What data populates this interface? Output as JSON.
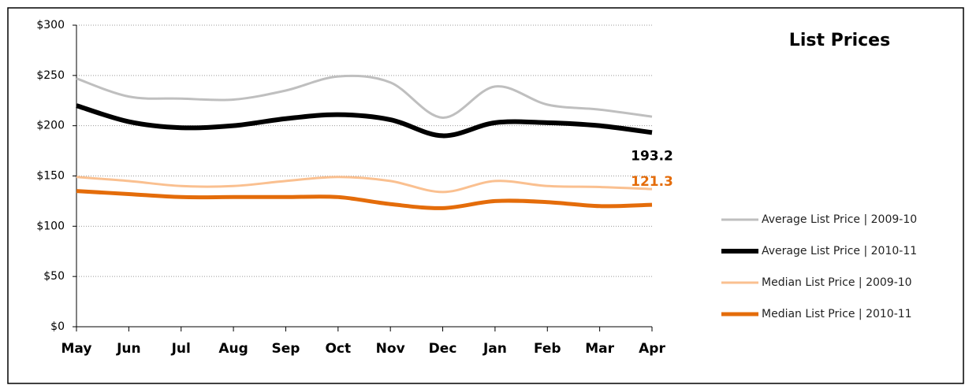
{
  "chart_data": {
    "type": "line",
    "title": "List Prices",
    "categories": [
      "May",
      "Jun",
      "Jul",
      "Aug",
      "Sep",
      "Oct",
      "Nov",
      "Dec",
      "Jan",
      "Feb",
      "Mar",
      "Apr"
    ],
    "series": [
      {
        "name": "Average List Price | 2009-10",
        "color": "#bfbfbf",
        "values": [
          247,
          229,
          227,
          226,
          235,
          249,
          243,
          208,
          239,
          221,
          216,
          209
        ]
      },
      {
        "name": "Average List Price | 2010-11",
        "color": "#000000",
        "values": [
          220,
          204,
          198,
          200,
          207,
          211,
          206,
          190,
          203,
          203,
          200,
          193.2
        ]
      },
      {
        "name": "Median List Price | 2009-10",
        "color": "#fac090",
        "values": [
          149,
          145,
          140,
          140,
          145,
          149,
          145,
          134,
          145,
          140,
          139,
          137
        ]
      },
      {
        "name": "Median List Price | 2010-11",
        "color": "#e46c0a",
        "values": [
          135,
          132,
          129,
          129,
          129,
          129,
          122,
          118,
          125,
          124,
          120,
          121.3
        ]
      }
    ],
    "ylim": [
      0,
      300
    ],
    "yticks": [
      {
        "value": 0,
        "label": "$0"
      },
      {
        "value": 50,
        "label": "$50"
      },
      {
        "value": 100,
        "label": "$100"
      },
      {
        "value": 150,
        "label": "$150"
      },
      {
        "value": 200,
        "label": "$200"
      },
      {
        "value": 250,
        "label": "$250"
      },
      {
        "value": 300,
        "label": "$300"
      }
    ],
    "grid": true,
    "legend": "right"
  }
}
